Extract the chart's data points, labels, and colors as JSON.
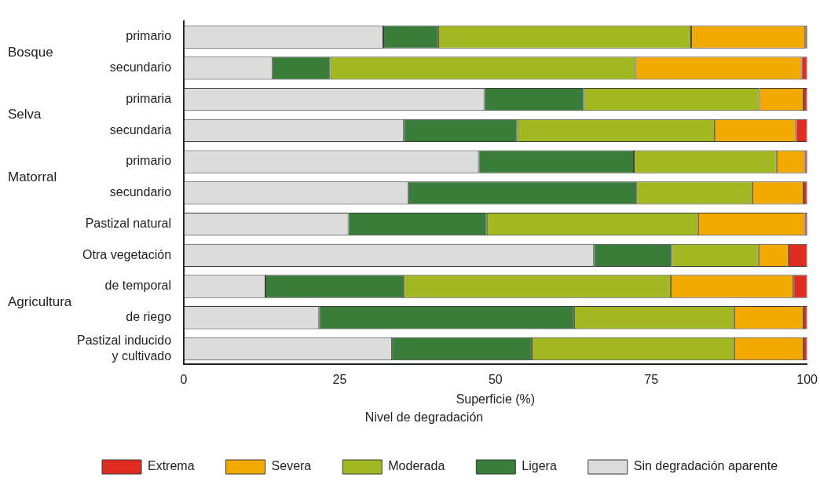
{
  "chart_data": {
    "type": "bar",
    "orientation": "horizontal",
    "stacked": true,
    "xlabel": "Superficie (%)",
    "legend_title": "Nivel de degradación",
    "legend": "bottom",
    "grid": false,
    "categories": [
      "primario",
      "secundario",
      "primaria",
      "secundaria",
      "primario",
      "secundario",
      "Pastizal natural",
      "Otra vegetación",
      "de temporal",
      "de riego",
      "Pastizal inducido\ny cultivado"
    ],
    "annotations": [
      "Bosque",
      "Selva",
      "Matorral",
      "Agricultura"
    ],
    "xlim": [
      0,
      100
    ],
    "xticks": [
      0,
      25,
      50,
      75,
      100
    ],
    "series": [
      {
        "name": "Sin degradación aparente",
        "color": "#dcdcdc",
        "values": [
          32,
          14.2,
          48.2,
          35.3,
          47.3,
          36,
          26.4,
          65.8,
          13.1,
          21.7,
          33.4
        ]
      },
      {
        "name": "Ligera",
        "color": "#3a7d3a",
        "values": [
          8.8,
          9.3,
          16,
          18.2,
          24.9,
          36.6,
          22.2,
          12.5,
          22.2,
          40.9,
          22.4
        ]
      },
      {
        "name": "Moderada",
        "color": "#a2b820",
        "values": [
          40.6,
          49,
          28.1,
          31.7,
          22.9,
          18.6,
          33.9,
          13.9,
          42.8,
          25.7,
          32.5
        ]
      },
      {
        "name": "Severa",
        "color": "#f2a900",
        "values": [
          18.3,
          26.6,
          7.1,
          13,
          4.5,
          8.2,
          17.1,
          4.8,
          19.7,
          11.1,
          11.1
        ]
      },
      {
        "name": "Extrema",
        "color": "#e02b20",
        "values": [
          0.3,
          0.9,
          0.6,
          1.8,
          0.4,
          0.6,
          0.4,
          3,
          2.2,
          0.6,
          0.6
        ]
      }
    ]
  }
}
